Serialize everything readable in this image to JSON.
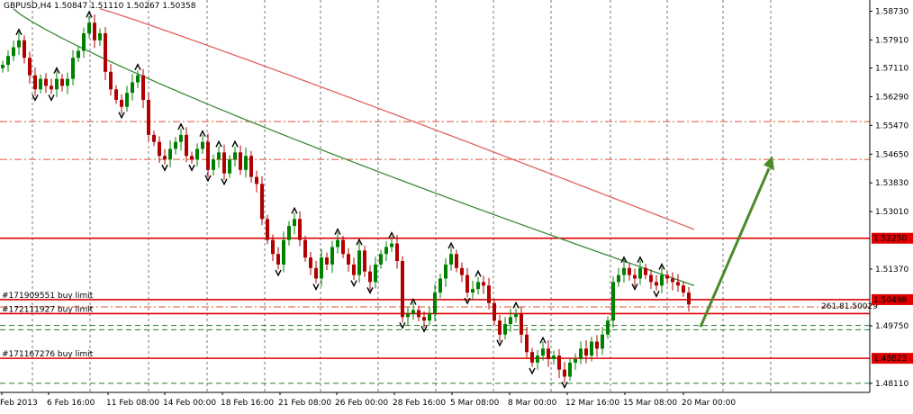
{
  "chart_data": {
    "type": "candlestick",
    "header": "GBPUSD,H4  1.50847 1.51110 1.50267 1.50358",
    "symbol": "GBPUSD",
    "timeframe": "H4",
    "ohlc_current": {
      "open": 1.50847,
      "high": 1.5111,
      "low": 1.50267,
      "close": 1.50358
    },
    "ylim": [
      1.4785,
      1.5905
    ],
    "y_ticks": [
      "1.58730",
      "1.57910",
      "1.57110",
      "1.56290",
      "1.55470",
      "1.54650",
      "1.53830",
      "1.53010",
      "1.52250",
      "1.51370",
      "1.50498",
      "1.49750",
      "1.48823",
      "1.48110"
    ],
    "x_ticks": [
      "Feb 2013",
      "6 Feb 16:00",
      "11 Feb 08:00",
      "14 Feb 00:00",
      "18 Feb 16:00",
      "21 Feb 08:00",
      "26 Feb 00:00",
      "28 Feb 16:00",
      "5 Mar 08:00",
      "8 Mar 00:00",
      "12 Mar 16:00",
      "15 Mar 08:00",
      "20 Mar 00:00"
    ],
    "bar_count": 128,
    "candles_close": [
      1.572,
      1.5745,
      1.577,
      1.579,
      1.574,
      1.569,
      1.565,
      1.568,
      1.566,
      1.565,
      1.568,
      1.566,
      1.568,
      1.574,
      1.576,
      1.581,
      1.584,
      1.579,
      1.581,
      1.57,
      1.565,
      1.562,
      1.56,
      1.564,
      1.567,
      1.569,
      1.562,
      1.552,
      1.55,
      1.546,
      1.545,
      1.548,
      1.55,
      1.552,
      1.546,
      1.545,
      1.548,
      1.55,
      1.542,
      1.545,
      1.547,
      1.541,
      1.545,
      1.547,
      1.542,
      1.546,
      1.54,
      1.538,
      1.528,
      1.522,
      1.518,
      1.515,
      1.522,
      1.526,
      1.528,
      1.522,
      1.517,
      1.514,
      1.511,
      1.517,
      1.515,
      1.52,
      1.522,
      1.518,
      1.515,
      1.512,
      1.519,
      1.513,
      1.51,
      1.515,
      1.518,
      1.52,
      1.521,
      1.516,
      1.5,
      1.501,
      1.502,
      1.5,
      1.499,
      1.501,
      1.507,
      1.511,
      1.515,
      1.518,
      1.514,
      1.512,
      1.507,
      1.508,
      1.51,
      1.509,
      1.504,
      1.499,
      1.495,
      1.498,
      1.5,
      1.501,
      1.495,
      1.49,
      1.487,
      1.489,
      1.491,
      1.488,
      1.489,
      1.485,
      1.483,
      1.487,
      1.488,
      1.491,
      1.489,
      1.493,
      1.491,
      1.495,
      1.499,
      1.51,
      1.512,
      1.514,
      1.512,
      1.511,
      1.514,
      1.512,
      1.51,
      1.509,
      1.512,
      1.511,
      1.51,
      1.509,
      1.507,
      1.5036
    ],
    "series": [
      {
        "name": "",
        "color": "#e06060",
        "start": 1.588,
        "end": 1.525,
        "from_bar": 18,
        "to_bar": 128
      },
      {
        "name": "",
        "color": "#3a8a3a",
        "start": 1.588,
        "end": 1.509,
        "from_bar": 2,
        "to_bar": 128
      }
    ],
    "horizontal_lines": [
      {
        "price": 1.5225,
        "color": "#e00000",
        "style": "solid",
        "label": "1.52250"
      },
      {
        "price": 1.50498,
        "color": "#e00000",
        "style": "solid",
        "label": "1.50498"
      },
      {
        "price": 1.501,
        "color": "#e00000",
        "style": "solid"
      },
      {
        "price": 1.48823,
        "color": "#e00000",
        "style": "solid",
        "label": "1.48823"
      },
      {
        "price": 1.5558,
        "color": "#e05030",
        "style": "dashdot"
      },
      {
        "price": 1.545,
        "color": "#e05030",
        "style": "dashdot"
      },
      {
        "price": 1.5029,
        "color": "#e05030",
        "style": "dashdot"
      },
      {
        "price": 1.4976,
        "color": "#2a7a2a",
        "style": "dashed"
      },
      {
        "price": 1.4964,
        "color": "#2a7a2a",
        "style": "dashed"
      },
      {
        "price": 1.4811,
        "color": "#2a7a2a",
        "style": "dashed"
      }
    ],
    "annotations": [
      {
        "text": "#171909551 buy limit",
        "price": 1.50498
      },
      {
        "text": "#172111927 buy limit",
        "price": 1.501
      },
      {
        "text": "#171167276 buy limit",
        "price": 1.48823
      },
      {
        "text": "261.81.50029",
        "price": 1.5029
      }
    ],
    "arrow": {
      "from_price": 1.4972,
      "to_price": 1.546,
      "color": "#4a8a2a"
    },
    "grid": true,
    "grid_style": "dashed-vertical"
  }
}
